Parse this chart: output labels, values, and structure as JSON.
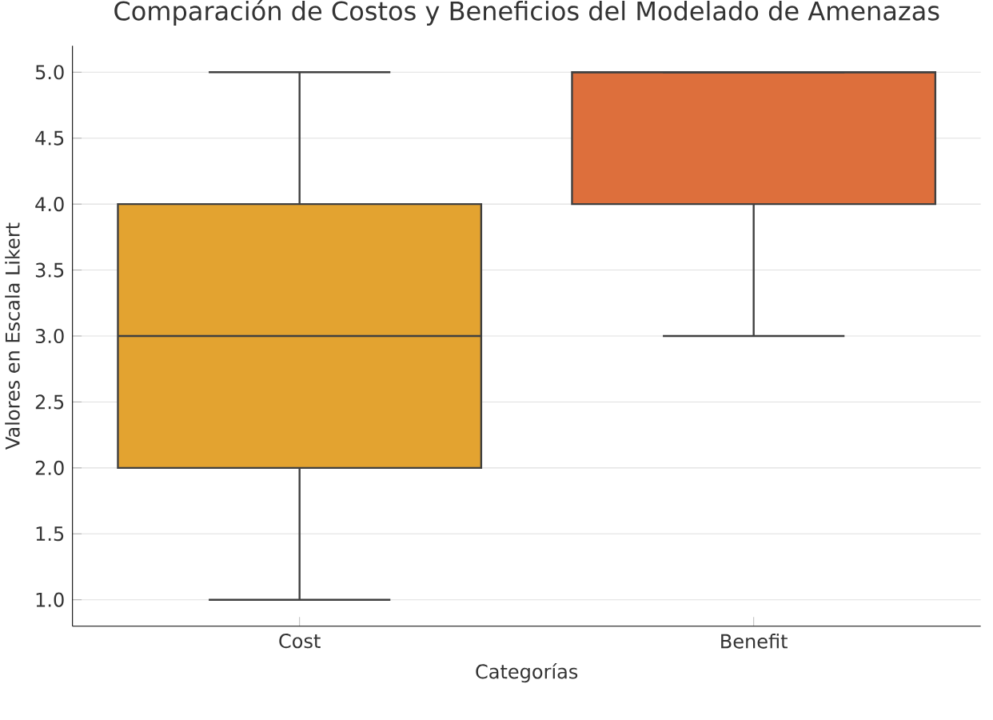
{
  "chart_data": {
    "type": "box",
    "title": "Comparación de Costos y Beneficios del Modelado de Amenazas",
    "xlabel": "Categorías",
    "ylabel": "Valores en Escala Likert",
    "categories": [
      "Cost",
      "Benefit"
    ],
    "boxes": [
      {
        "low": 1,
        "q1": 2,
        "median": 3,
        "q3": 4,
        "high": 5
      },
      {
        "low": 3,
        "q1": 4,
        "median": 5,
        "q3": 5,
        "high": 5
      }
    ],
    "colors": [
      "#e3a330",
      "#dd6f3c"
    ],
    "ylim": [
      0.8,
      5.2
    ],
    "yticks": [
      {
        "value": 1,
        "label": "1.0"
      },
      {
        "value": 1.5,
        "label": "1.5"
      },
      {
        "value": 2,
        "label": "2.0"
      },
      {
        "value": 2.5,
        "label": "2.5"
      },
      {
        "value": 3,
        "label": "3.0"
      },
      {
        "value": 3.5,
        "label": "3.5"
      },
      {
        "value": 4,
        "label": "4.0"
      },
      {
        "value": 4.5,
        "label": "4.5"
      },
      {
        "value": 5,
        "label": "5.0"
      }
    ],
    "grid": "y"
  }
}
